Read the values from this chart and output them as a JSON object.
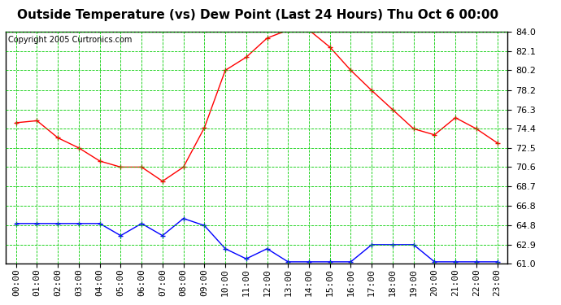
{
  "title": "Outside Temperature (vs) Dew Point (Last 24 Hours) Thu Oct 6 00:00",
  "copyright": "Copyright 2005 Curtronics.com",
  "x_labels": [
    "00:00",
    "01:00",
    "02:00",
    "03:00",
    "04:00",
    "05:00",
    "06:00",
    "07:00",
    "08:00",
    "09:00",
    "10:00",
    "11:00",
    "12:00",
    "13:00",
    "14:00",
    "15:00",
    "16:00",
    "17:00",
    "18:00",
    "19:00",
    "20:00",
    "21:00",
    "22:00",
    "23:00"
  ],
  "temp_data": [
    75.0,
    75.2,
    73.5,
    72.5,
    71.2,
    70.6,
    70.6,
    69.2,
    70.6,
    74.5,
    80.2,
    81.5,
    83.4,
    84.2,
    84.2,
    82.5,
    80.2,
    78.2,
    76.3,
    74.4,
    73.8,
    75.5,
    74.4,
    73.0
  ],
  "dew_data": [
    65.0,
    65.0,
    65.0,
    65.0,
    65.0,
    63.8,
    65.0,
    63.8,
    65.5,
    64.8,
    62.5,
    61.5,
    62.5,
    61.2,
    61.2,
    61.2,
    61.2,
    62.9,
    62.9,
    62.9,
    61.2,
    61.2,
    61.2,
    61.2
  ],
  "temp_color": "#ff0000",
  "dew_color": "#0000ff",
  "bg_color": "#ffffff",
  "plot_bg_color": "#ffffff",
  "grid_color": "#00cc00",
  "yticks": [
    61.0,
    62.9,
    64.8,
    66.8,
    68.7,
    70.6,
    72.5,
    74.4,
    76.3,
    78.2,
    80.2,
    82.1,
    84.0
  ],
  "ymin": 61.0,
  "ymax": 84.0,
  "title_fontsize": 11,
  "copyright_fontsize": 7,
  "tick_fontsize": 8
}
